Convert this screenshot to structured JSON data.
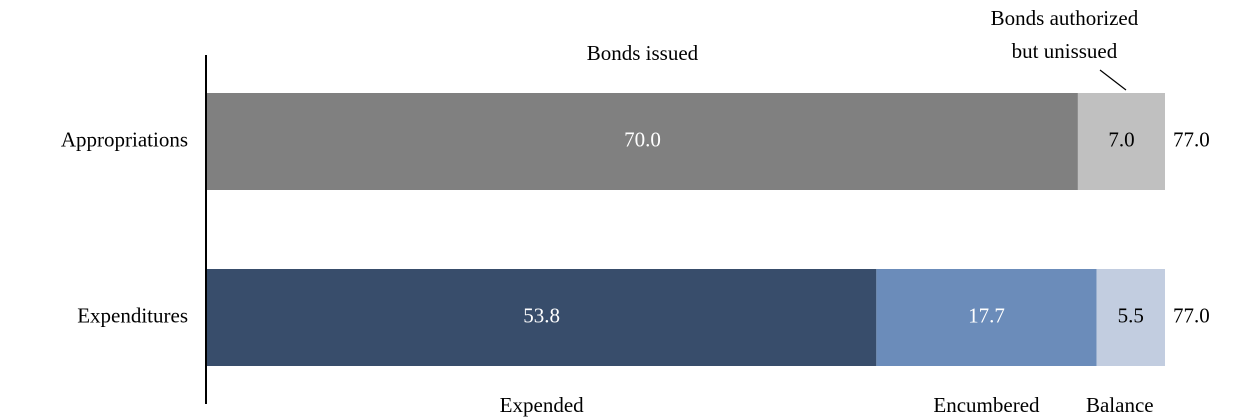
{
  "chart_data": {
    "type": "stacked-bar-horizontal",
    "bars": [
      {
        "category": "Appropriations",
        "total": 77,
        "total_label": "77.0",
        "segments": [
          {
            "name": "Bonds issued",
            "value": 70,
            "label": "70.0",
            "color": "#808080"
          },
          {
            "name": [
              "Bonds authorized",
              "but unissued"
            ],
            "value": 7,
            "label": "7.0",
            "color": "#c0c0c0"
          }
        ]
      },
      {
        "category": "Expenditures",
        "total": 77,
        "total_label": "77.0",
        "segments": [
          {
            "name": "Expended",
            "value": 53.8,
            "label": "53.8",
            "color": "#384d6b"
          },
          {
            "name": "Encumbered",
            "value": 17.7,
            "label": "17.7",
            "color": "#6b8cba"
          },
          {
            "name": "Balance",
            "value": 5.5,
            "label": "5.5",
            "color": "#c2cde0"
          }
        ]
      }
    ]
  }
}
